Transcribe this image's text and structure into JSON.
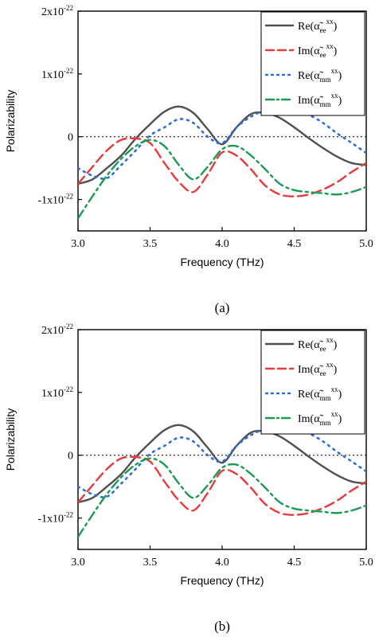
{
  "chart_data": [
    {
      "type": "line",
      "panel_label": "(a)",
      "xlabel": "Frequency (THz)",
      "ylabel": "Polarizability",
      "xlim": [
        3.0,
        5.0
      ],
      "ylim": [
        -1.5e-22,
        2e-22
      ],
      "xticks": [
        "3.0",
        "3.5",
        "4.0",
        "4.5",
        "5.0"
      ],
      "yticks": [
        {
          "value": 2e-22,
          "mant": "2x10",
          "exp": "-22"
        },
        {
          "value": 1e-22,
          "mant": "1x10",
          "exp": "-22"
        },
        {
          "value": 0,
          "mant": "0",
          "exp": ""
        },
        {
          "value": -1e-22,
          "mant": "-1x10",
          "exp": "-22"
        }
      ],
      "zero_line": true,
      "legend_position": "top-right",
      "series": [
        {
          "name": "Re(α̃ee^xx)",
          "legend": {
            "pre": "Re(",
            "sub": "ee",
            "sup": "xx",
            "post": ")"
          },
          "color": "#505050",
          "style": "solid",
          "x": [
            3.0,
            3.1,
            3.2,
            3.3,
            3.4,
            3.5,
            3.6,
            3.7,
            3.8,
            3.9,
            4.0,
            4.1,
            4.2,
            4.3,
            4.4,
            4.5,
            4.6,
            4.7,
            4.8,
            4.9,
            5.0
          ],
          "y": [
            -7.5e-23,
            -6.8e-23,
            -5e-23,
            -3e-23,
            -3e-24,
            2e-23,
            4e-23,
            4.8e-23,
            3.8e-23,
            1.2e-23,
            -1.2e-23,
            1.5e-23,
            3.6e-23,
            3.8e-23,
            3e-23,
            1.5e-23,
            -2e-24,
            -1.8e-23,
            -3.2e-23,
            -4.2e-23,
            -4.5e-23
          ]
        },
        {
          "name": "Im(α̃ee^xx)",
          "legend": {
            "pre": "Im(",
            "sub": "ee",
            "sup": "xx",
            "post": ")"
          },
          "color": "#e83a3a",
          "style": "dash",
          "x": [
            3.0,
            3.1,
            3.2,
            3.3,
            3.4,
            3.5,
            3.6,
            3.7,
            3.8,
            3.9,
            4.0,
            4.1,
            4.2,
            4.3,
            4.4,
            4.5,
            4.6,
            4.7,
            4.8,
            4.9,
            5.0
          ],
          "y": [
            -7.5e-23,
            -4.8e-23,
            -2.2e-23,
            -5e-24,
            -3e-24,
            -1e-23,
            -4.2e-23,
            -7.2e-23,
            -8.8e-23,
            -6e-23,
            -2.5e-23,
            -3e-23,
            -5.2e-23,
            -7.8e-23,
            -9.2e-23,
            -9.5e-23,
            -9.2e-23,
            -8.4e-23,
            -7.2e-23,
            -5.6e-23,
            -4.2e-23
          ]
        },
        {
          "name": "Re(α̃mm^xx)",
          "legend": {
            "pre": "Re(",
            "sub": "mm",
            "sup": "xx",
            "post": ")"
          },
          "color": "#2f6fd6",
          "style": "dot",
          "x": [
            3.0,
            3.1,
            3.2,
            3.3,
            3.4,
            3.5,
            3.6,
            3.7,
            3.8,
            3.9,
            4.0,
            4.1,
            4.2,
            4.3,
            4.4,
            4.5,
            4.6,
            4.7,
            4.8,
            4.9,
            5.0
          ],
          "y": [
            -5e-23,
            -6.2e-23,
            -6.6e-23,
            -4.5e-23,
            -2.2e-23,
            2e-24,
            1.5e-23,
            2.8e-23,
            2.2e-23,
            0.0,
            -1e-23,
            1.5e-23,
            3.2e-23,
            4.2e-23,
            4.6e-23,
            4.2e-23,
            3.5e-23,
            2.2e-23,
            5e-24,
            -1e-23,
            -2.6e-23
          ]
        },
        {
          "name": "Im(α̃mm^xx)",
          "legend": {
            "pre": "Im(",
            "sub": "mm",
            "sup": "xx",
            "post": ")"
          },
          "color": "#1a9b50",
          "style": "dashdot",
          "x": [
            3.0,
            3.1,
            3.2,
            3.3,
            3.4,
            3.5,
            3.6,
            3.7,
            3.8,
            3.9,
            4.0,
            4.1,
            4.2,
            4.3,
            4.4,
            4.5,
            4.6,
            4.7,
            4.8,
            4.9,
            5.0
          ],
          "y": [
            -1.3e-22,
            -9.5e-23,
            -6.2e-23,
            -3.5e-23,
            -1.5e-23,
            -5e-24,
            -1.5e-23,
            -4.5e-23,
            -6.8e-23,
            -4.8e-23,
            -2e-23,
            -1.5e-23,
            -3e-23,
            -5.2e-23,
            -7.5e-23,
            -8.5e-23,
            -8.8e-23,
            -9e-23,
            -9.2e-23,
            -8.8e-23,
            -8e-23
          ]
        }
      ]
    },
    {
      "type": "line",
      "panel_label": "(b)",
      "xlabel": "Frequency (THz)",
      "ylabel": "Polarizability",
      "xlim": [
        3.0,
        5.0
      ],
      "ylim": [
        -1.5e-22,
        2e-22
      ],
      "xticks": [
        "3.0",
        "3.5",
        "4.0",
        "4.5",
        "5.0"
      ],
      "yticks": [
        {
          "value": 2e-22,
          "mant": "2x10",
          "exp": "-22"
        },
        {
          "value": 1e-22,
          "mant": "1x10",
          "exp": "-22"
        },
        {
          "value": 0,
          "mant": "0",
          "exp": ""
        },
        {
          "value": -1e-22,
          "mant": "-1x10",
          "exp": "-22"
        }
      ],
      "zero_line": true,
      "legend_position": "top-right",
      "series": [
        {
          "name": "Re(α̃ee^xx)",
          "legend": {
            "pre": "Re(",
            "sub": "ee",
            "sup": "xx",
            "post": ")"
          },
          "color": "#505050",
          "style": "solid",
          "x": [
            3.0,
            3.1,
            3.2,
            3.3,
            3.4,
            3.5,
            3.6,
            3.7,
            3.8,
            3.9,
            4.0,
            4.1,
            4.2,
            4.3,
            4.4,
            4.5,
            4.6,
            4.7,
            4.8,
            4.9,
            5.0
          ],
          "y": [
            -7.5e-23,
            -6.8e-23,
            -5e-23,
            -3e-23,
            -3e-24,
            2e-23,
            4e-23,
            4.8e-23,
            3.8e-23,
            1.2e-23,
            -1.2e-23,
            1.5e-23,
            3.6e-23,
            3.8e-23,
            3e-23,
            1.5e-23,
            -2e-24,
            -1.8e-23,
            -3.2e-23,
            -4.2e-23,
            -4.5e-23
          ]
        },
        {
          "name": "Im(α̃ee^xx)",
          "legend": {
            "pre": "Im(",
            "sub": "ee",
            "sup": "xx",
            "post": ")"
          },
          "color": "#e83a3a",
          "style": "dash",
          "x": [
            3.0,
            3.1,
            3.2,
            3.3,
            3.4,
            3.5,
            3.6,
            3.7,
            3.8,
            3.9,
            4.0,
            4.1,
            4.2,
            4.3,
            4.4,
            4.5,
            4.6,
            4.7,
            4.8,
            4.9,
            5.0
          ],
          "y": [
            -7.5e-23,
            -4.8e-23,
            -2.2e-23,
            -5e-24,
            -3e-24,
            -1e-23,
            -4.2e-23,
            -7.2e-23,
            -8.8e-23,
            -6e-23,
            -2.5e-23,
            -3e-23,
            -5.2e-23,
            -7.8e-23,
            -9.2e-23,
            -9.5e-23,
            -9.2e-23,
            -8.4e-23,
            -7.2e-23,
            -5.6e-23,
            -4.2e-23
          ]
        },
        {
          "name": "Re(α̃mm^xx)",
          "legend": {
            "pre": "Re(",
            "sub": "mm",
            "sup": "xx",
            "post": ")"
          },
          "color": "#2f6fd6",
          "style": "dot",
          "x": [
            3.0,
            3.1,
            3.2,
            3.3,
            3.4,
            3.5,
            3.6,
            3.7,
            3.8,
            3.9,
            4.0,
            4.1,
            4.2,
            4.3,
            4.4,
            4.5,
            4.6,
            4.7,
            4.8,
            4.9,
            5.0
          ],
          "y": [
            -5e-23,
            -6.2e-23,
            -6.6e-23,
            -4.5e-23,
            -2.2e-23,
            2e-24,
            1.5e-23,
            2.8e-23,
            2.2e-23,
            0.0,
            -1e-23,
            1.5e-23,
            3.2e-23,
            4.2e-23,
            4.6e-23,
            4.2e-23,
            3.5e-23,
            2.2e-23,
            5e-24,
            -1e-23,
            -2.6e-23
          ]
        },
        {
          "name": "Im(α̃mm^xx)",
          "legend": {
            "pre": "Im(",
            "sub": "mm",
            "sup": "xx",
            "post": ")"
          },
          "color": "#1a9b50",
          "style": "dashdot",
          "x": [
            3.0,
            3.1,
            3.2,
            3.3,
            3.4,
            3.5,
            3.6,
            3.7,
            3.8,
            3.9,
            4.0,
            4.1,
            4.2,
            4.3,
            4.4,
            4.5,
            4.6,
            4.7,
            4.8,
            4.9,
            5.0
          ],
          "y": [
            -1.3e-22,
            -9.5e-23,
            -6.2e-23,
            -3.5e-23,
            -1.5e-23,
            -5e-24,
            -1.5e-23,
            -4.5e-23,
            -6.8e-23,
            -4.8e-23,
            -2e-23,
            -1.5e-23,
            -3e-23,
            -5.2e-23,
            -7.5e-23,
            -8.5e-23,
            -8.8e-23,
            -9e-23,
            -9.2e-23,
            -8.8e-23,
            -8e-23
          ]
        }
      ]
    }
  ]
}
